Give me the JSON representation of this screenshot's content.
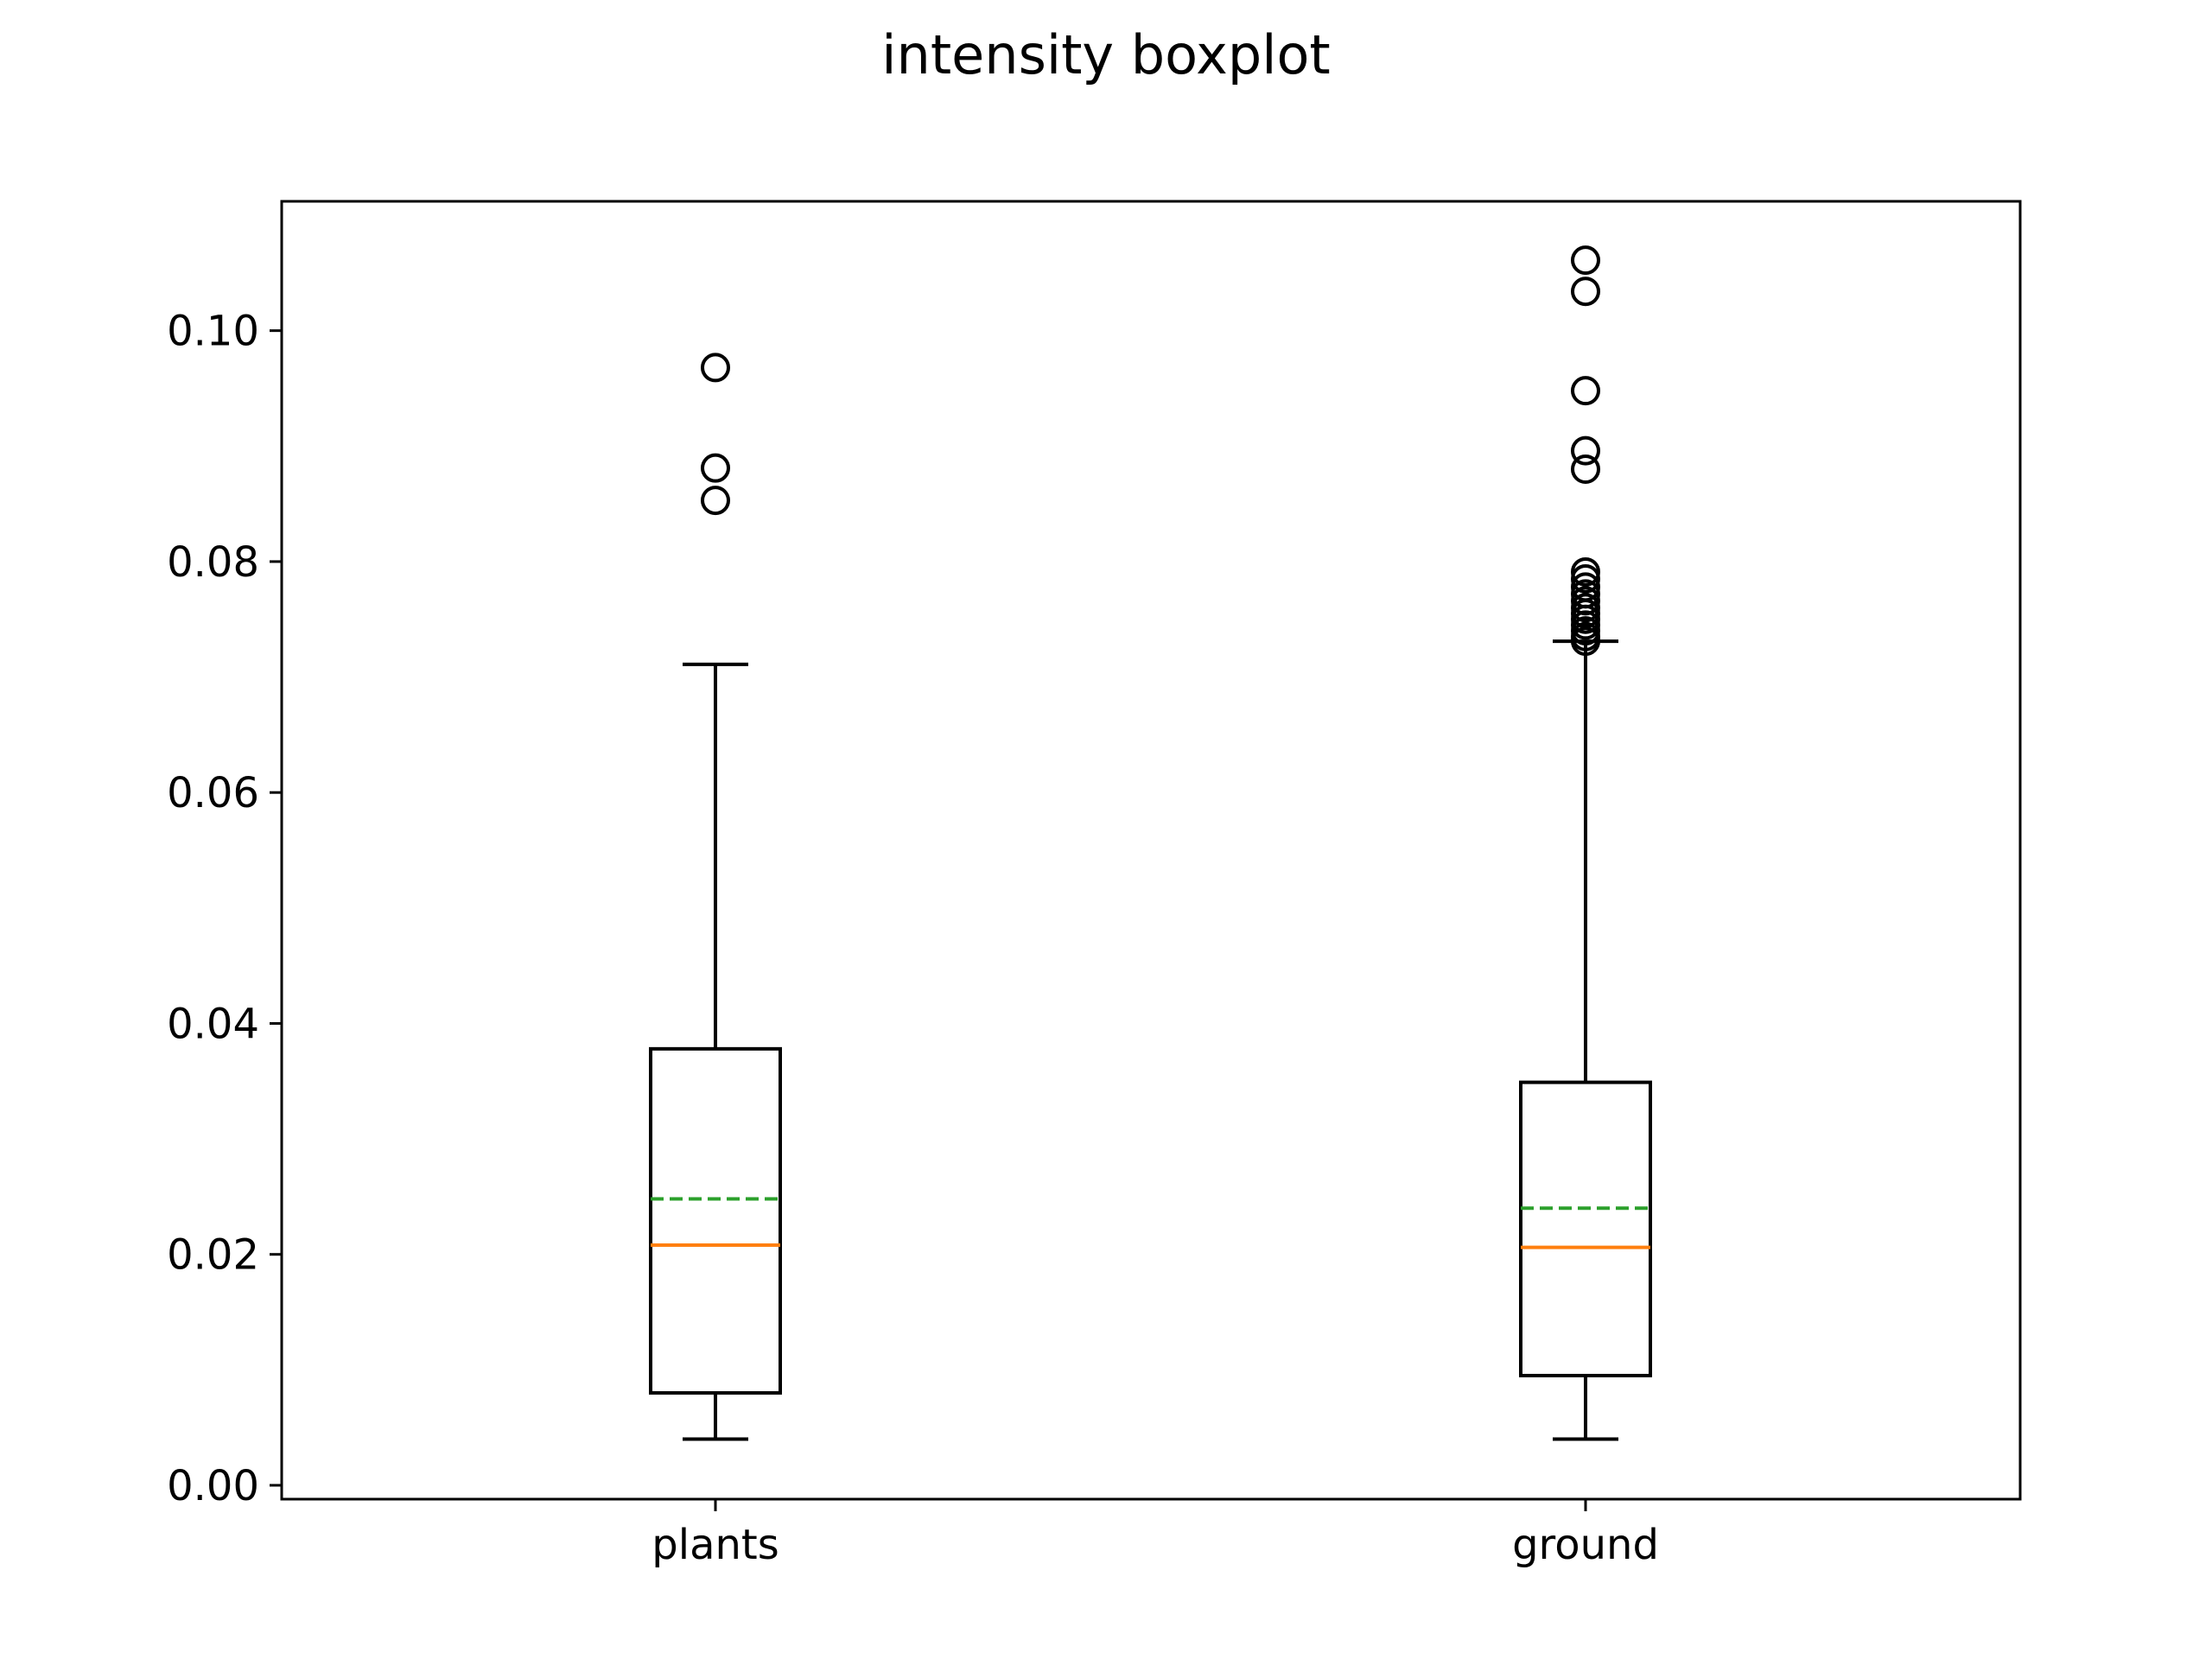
{
  "chart_data": {
    "type": "box",
    "title": "intensity boxplot",
    "xlabel": "",
    "ylabel": "",
    "categories": [
      "plants",
      "ground"
    ],
    "ylim": [
      -0.0012,
      0.1112
    ],
    "yticks": [
      "0.00",
      "0.02",
      "0.04",
      "0.06",
      "0.08",
      "0.10"
    ],
    "yticks_values": [
      0.0,
      0.02,
      0.04,
      0.06,
      0.08,
      0.1
    ],
    "grid": false,
    "legend": "none",
    "boxes": [
      {
        "name": "plants",
        "whisker_low": 0.004,
        "q1": 0.008,
        "median": 0.0208,
        "mean": 0.0248,
        "q3": 0.0378,
        "whisker_high": 0.0711,
        "outliers": [
          0.0853,
          0.0881,
          0.0968
        ]
      },
      {
        "name": "ground",
        "whisker_low": 0.004,
        "q1": 0.0095,
        "median": 0.0206,
        "mean": 0.024,
        "q3": 0.0349,
        "whisker_high": 0.0731,
        "outliers": [
          0.0731,
          0.0735,
          0.074,
          0.0745,
          0.075,
          0.0755,
          0.076,
          0.0766,
          0.0772,
          0.0778,
          0.0785,
          0.0791,
          0.088,
          0.0896,
          0.0948,
          0.1034,
          0.1061
        ]
      }
    ],
    "colors": {
      "box": "#000000",
      "median": "#ff7f0e",
      "mean": "#2ca02c",
      "outlier": "#000000"
    }
  }
}
